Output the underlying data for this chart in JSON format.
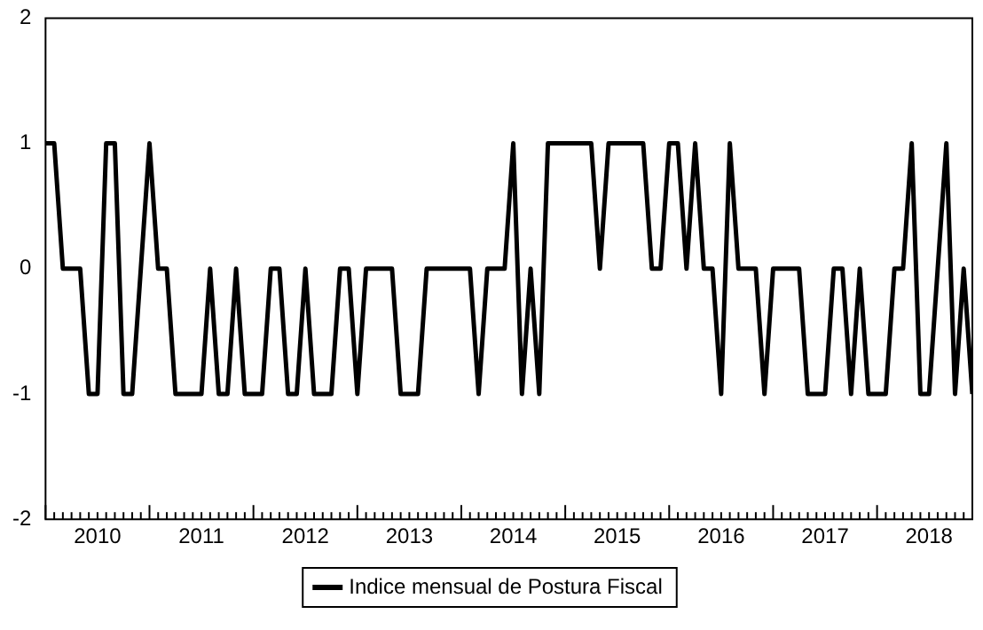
{
  "chart_data": {
    "type": "line",
    "x": [
      "2010-01",
      "2010-02",
      "2010-03",
      "2010-04",
      "2010-05",
      "2010-06",
      "2010-07",
      "2010-08",
      "2010-09",
      "2010-10",
      "2010-11",
      "2010-12",
      "2011-01",
      "2011-02",
      "2011-03",
      "2011-04",
      "2011-05",
      "2011-06",
      "2011-07",
      "2011-08",
      "2011-09",
      "2011-10",
      "2011-11",
      "2011-12",
      "2012-01",
      "2012-02",
      "2012-03",
      "2012-04",
      "2012-05",
      "2012-06",
      "2012-07",
      "2012-08",
      "2012-09",
      "2012-10",
      "2012-11",
      "2012-12",
      "2013-01",
      "2013-02",
      "2013-03",
      "2013-04",
      "2013-05",
      "2013-06",
      "2013-07",
      "2013-08",
      "2013-09",
      "2013-10",
      "2013-11",
      "2013-12",
      "2014-01",
      "2014-02",
      "2014-03",
      "2014-04",
      "2014-05",
      "2014-06",
      "2014-07",
      "2014-08",
      "2014-09",
      "2014-10",
      "2014-11",
      "2014-12",
      "2015-01",
      "2015-02",
      "2015-03",
      "2015-04",
      "2015-05",
      "2015-06",
      "2015-07",
      "2015-08",
      "2015-09",
      "2015-10",
      "2015-11",
      "2015-12",
      "2016-01",
      "2016-02",
      "2016-03",
      "2016-04",
      "2016-05",
      "2016-06",
      "2016-07",
      "2016-08",
      "2016-09",
      "2016-10",
      "2016-11",
      "2016-12",
      "2017-01",
      "2017-02",
      "2017-03",
      "2017-04",
      "2017-05",
      "2017-06",
      "2017-07",
      "2017-08",
      "2017-09",
      "2017-10",
      "2017-11",
      "2017-12",
      "2018-01",
      "2018-02",
      "2018-03",
      "2018-04",
      "2018-05",
      "2018-06",
      "2018-07",
      "2018-08",
      "2018-09",
      "2018-10",
      "2018-11",
      "2018-12"
    ],
    "series": [
      {
        "name": "Indice mensual de Postura Fiscal",
        "color": "#000000",
        "values": [
          1,
          1,
          0,
          0,
          0,
          -1,
          -1,
          1,
          1,
          -1,
          -1,
          0,
          1,
          0,
          0,
          -1,
          -1,
          -1,
          -1,
          0,
          -1,
          -1,
          0,
          -1,
          -1,
          -1,
          0,
          0,
          -1,
          -1,
          0,
          -1,
          -1,
          -1,
          0,
          0,
          -1,
          0,
          0,
          0,
          0,
          -1,
          -1,
          -1,
          0,
          0,
          0,
          0,
          0,
          0,
          -1,
          0,
          0,
          0,
          1,
          -1,
          0,
          -1,
          1,
          1,
          1,
          1,
          1,
          1,
          0,
          1,
          1,
          1,
          1,
          1,
          0,
          0,
          1,
          1,
          0,
          1,
          0,
          0,
          -1,
          1,
          0,
          0,
          0,
          -1,
          0,
          0,
          0,
          0,
          -1,
          -1,
          -1,
          0,
          0,
          -1,
          0,
          -1,
          -1,
          -1,
          0,
          0,
          1,
          -1,
          -1,
          0,
          1,
          -1,
          0,
          -1
        ]
      }
    ],
    "xlim": [
      "2010-01",
      "2018-12"
    ],
    "xticks": [
      {
        "value": "2010-07",
        "label": "2010"
      },
      {
        "value": "2011-07",
        "label": "2011"
      },
      {
        "value": "2012-07",
        "label": "2012"
      },
      {
        "value": "2013-07",
        "label": "2013"
      },
      {
        "value": "2014-07",
        "label": "2014"
      },
      {
        "value": "2015-07",
        "label": "2015"
      },
      {
        "value": "2016-07",
        "label": "2016"
      },
      {
        "value": "2017-07",
        "label": "2017"
      },
      {
        "value": "2018-07",
        "label": "2018"
      }
    ],
    "ylim": [
      -2,
      2
    ],
    "yticks": [
      -2,
      -1,
      0,
      1,
      2
    ],
    "grid": false,
    "legend": "bottom",
    "marker": "none",
    "line_style": "solid"
  }
}
